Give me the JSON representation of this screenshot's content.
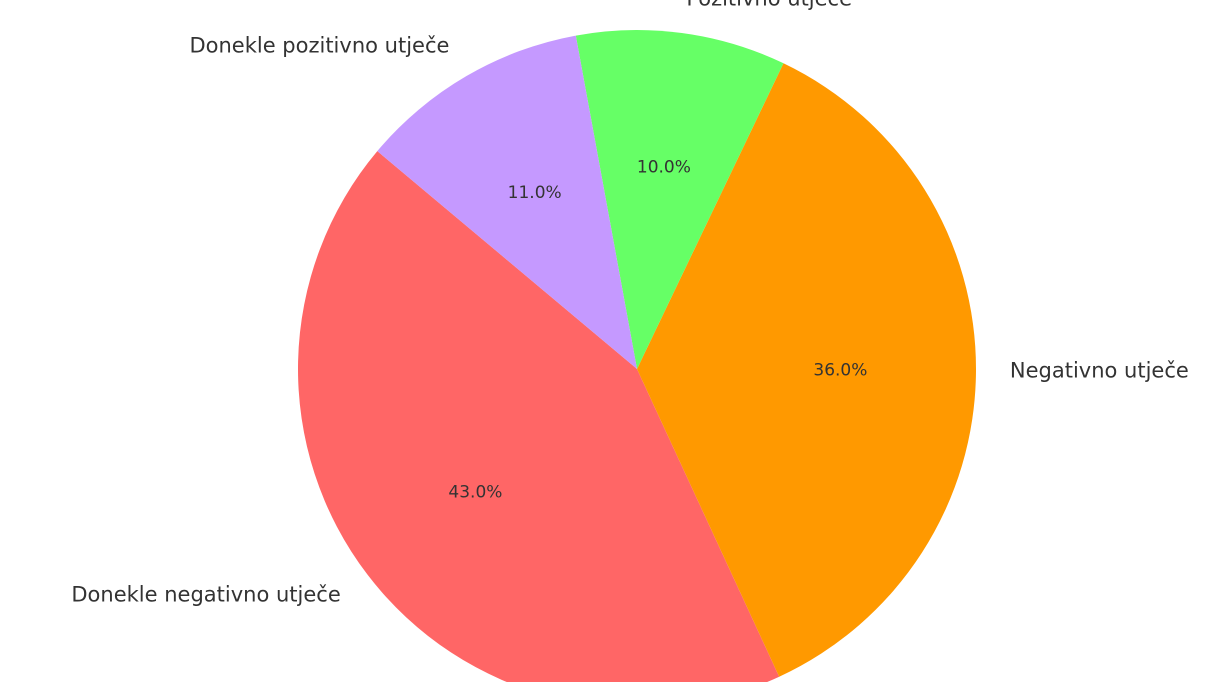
{
  "chart_data": {
    "type": "pie",
    "startangle": 140,
    "categories": [
      "Donekle negativno utječe",
      "Negativno utječe",
      "Pozitivno utječe",
      "Donekle pozitivno utječe"
    ],
    "values": [
      43,
      36,
      10,
      11
    ],
    "value_labels": [
      "43.0%",
      "36.0%",
      "10.0%",
      "11.0%"
    ],
    "colors": [
      "#ff6666",
      "#ff9900",
      "#66ff66",
      "#c599ff"
    ]
  }
}
